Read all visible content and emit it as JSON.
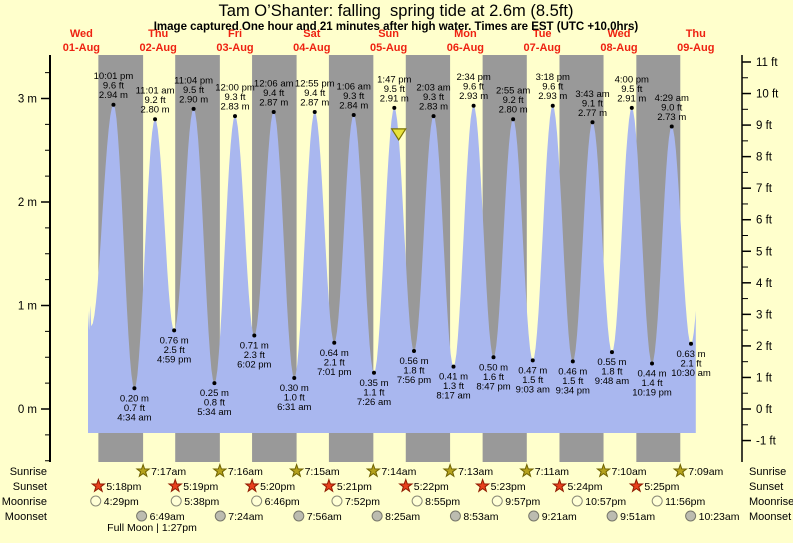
{
  "title": "Tam O’Shanter: falling  spring tide at 2.6m (8.5ft)",
  "subtitle": "Image captured One hour and 21 minutes after high water. Times are EST (UTC +10.0hrs)",
  "colors": {
    "background": "#ffffcc",
    "night_band": "#999999",
    "day_band": "#ffffcc",
    "tide_fill": "#a9b7ef",
    "date_text": "#ee2211",
    "text": "#000000",
    "sunrise_star": "#b5a21c",
    "sunrise_star_edge": "#6e6200",
    "sunset_star": "#e8401c",
    "sunset_star_edge": "#8f1a00",
    "moonrise_fill": "#ffffd6",
    "moonrise_edge": "#8a8a77",
    "moonset_fill": "#bcbcb0",
    "moonset_edge": "#77776a",
    "marker_fill": "#e8e23c",
    "marker_edge": "#7a7200"
  },
  "chart_data": {
    "type": "area",
    "title": "Tam O’Shanter: falling  spring tide at 2.6m (8.5ft)",
    "x_unit": "days since Wed 01-Aug 00:00 (t)",
    "ylim_m": [
      -0.5,
      3.4
    ],
    "grid": false,
    "days": [
      {
        "name": "Wed",
        "date": "01-Aug"
      },
      {
        "name": "Thu",
        "date": "02-Aug"
      },
      {
        "name": "Fri",
        "date": "03-Aug"
      },
      {
        "name": "Sat",
        "date": "04-Aug"
      },
      {
        "name": "Sun",
        "date": "05-Aug"
      },
      {
        "name": "Mon",
        "date": "06-Aug"
      },
      {
        "name": "Tue",
        "date": "07-Aug"
      },
      {
        "name": "Wed",
        "date": "08-Aug"
      },
      {
        "name": "Thu",
        "date": "09-Aug"
      }
    ],
    "left_axis": {
      "unit": "m",
      "minor_step": 0.25,
      "labels": [
        {
          "v": 0,
          "label": "0 m"
        },
        {
          "v": 1,
          "label": "1 m"
        },
        {
          "v": 2,
          "label": "2 m"
        },
        {
          "v": 3,
          "label": "3 m"
        }
      ]
    },
    "right_axis": {
      "unit": "ft",
      "minor_step": 0.5,
      "labels": [
        {
          "v": -1,
          "label": "-1 ft"
        },
        {
          "v": 0,
          "label": "0 ft"
        },
        {
          "v": 1,
          "label": "1 ft"
        },
        {
          "v": 2,
          "label": "2 ft"
        },
        {
          "v": 3,
          "label": "3 ft"
        },
        {
          "v": 4,
          "label": "4 ft"
        },
        {
          "v": 5,
          "label": "5 ft"
        },
        {
          "v": 6,
          "label": "6 ft"
        },
        {
          "v": 7,
          "label": "7 ft"
        },
        {
          "v": 8,
          "label": "8 ft"
        },
        {
          "v": 9,
          "label": "9 ft"
        },
        {
          "v": 10,
          "label": "10 ft"
        },
        {
          "v": 11,
          "label": "11 ft"
        }
      ]
    },
    "tide_events": [
      {
        "k": "H",
        "t": 0.9174,
        "vm": 2.94,
        "time": "10:01 pm",
        "ft": "9.6 ft",
        "m": "2.94 m"
      },
      {
        "k": "L",
        "t": 1.1903,
        "vm": 0.2,
        "time": "4:34 am",
        "ft": "0.7 ft",
        "m": "0.20 m"
      },
      {
        "k": "H",
        "t": 1.459,
        "vm": 2.8,
        "time": "11:01 am",
        "ft": "9.2 ft",
        "m": "2.80 m"
      },
      {
        "k": "L",
        "t": 1.7076,
        "vm": 0.76,
        "time": "4:59 pm",
        "ft": "2.5 ft",
        "m": "0.76 m"
      },
      {
        "k": "H",
        "t": 1.9611,
        "vm": 2.9,
        "time": "11:04 pm",
        "ft": "9.5 ft",
        "m": "2.90 m"
      },
      {
        "k": "L",
        "t": 2.2319,
        "vm": 0.25,
        "time": "5:34 am",
        "ft": "0.8 ft",
        "m": "0.25 m"
      },
      {
        "k": "H",
        "t": 2.5,
        "vm": 2.83,
        "time": "12:00 pm",
        "ft": "9.3 ft",
        "m": "2.83 m"
      },
      {
        "k": "L",
        "t": 2.7514,
        "vm": 0.71,
        "time": "6:02 pm",
        "ft": "2.3 ft",
        "m": "0.71 m"
      },
      {
        "k": "H",
        "t": 3.0042,
        "vm": 2.87,
        "time": "12:06 am",
        "ft": "9.4 ft",
        "m": "2.87 m"
      },
      {
        "k": "L",
        "t": 3.2715,
        "vm": 0.3,
        "time": "6:31 am",
        "ft": "1.0 ft",
        "m": "0.30 m"
      },
      {
        "k": "H",
        "t": 3.5382,
        "vm": 2.87,
        "time": "12:55 pm",
        "ft": "9.4 ft",
        "m": "2.87 m"
      },
      {
        "k": "L",
        "t": 3.7924,
        "vm": 0.64,
        "time": "7:01 pm",
        "ft": "2.1 ft",
        "m": "0.64 m"
      },
      {
        "k": "H",
        "t": 4.0458,
        "vm": 2.84,
        "time": "1:06 am",
        "ft": "9.3 ft",
        "m": "2.84 m"
      },
      {
        "k": "L",
        "t": 4.3097,
        "vm": 0.35,
        "time": "7:26 am",
        "ft": "1.1 ft",
        "m": "0.35 m"
      },
      {
        "k": "H",
        "t": 4.5743,
        "vm": 2.91,
        "time": "1:47 pm",
        "ft": "9.5 ft",
        "m": "2.91 m"
      },
      {
        "k": "L",
        "t": 4.8306,
        "vm": 0.56,
        "time": "7:56 pm",
        "ft": "1.8 ft",
        "m": "0.56 m"
      },
      {
        "k": "H",
        "t": 5.0854,
        "vm": 2.83,
        "time": "2:03 am",
        "ft": "9.3 ft",
        "m": "2.83 m"
      },
      {
        "k": "L",
        "t": 5.3451,
        "vm": 0.41,
        "time": "8:17 am",
        "ft": "1.3 ft",
        "m": "0.41 m"
      },
      {
        "k": "H",
        "t": 5.6069,
        "vm": 2.93,
        "time": "2:34 pm",
        "ft": "9.6 ft",
        "m": "2.93 m"
      },
      {
        "k": "L",
        "t": 5.866,
        "vm": 0.5,
        "time": "8:47 pm",
        "ft": "1.6 ft",
        "m": "0.50 m"
      },
      {
        "k": "H",
        "t": 6.1215,
        "vm": 2.8,
        "time": "2:55 am",
        "ft": "9.2 ft",
        "m": "2.80 m"
      },
      {
        "k": "L",
        "t": 6.3771,
        "vm": 0.47,
        "time": "9:03 am",
        "ft": "1.5 ft",
        "m": "0.47 m"
      },
      {
        "k": "H",
        "t": 6.6375,
        "vm": 2.93,
        "time": "3:18 pm",
        "ft": "9.6 ft",
        "m": "2.93 m"
      },
      {
        "k": "L",
        "t": 6.8986,
        "vm": 0.46,
        "time": "9:34 pm",
        "ft": "1.5 ft",
        "m": "0.46 m"
      },
      {
        "k": "H",
        "t": 7.1549,
        "vm": 2.77,
        "time": "3:43 am",
        "ft": "9.1 ft",
        "m": "2.77 m"
      },
      {
        "k": "L",
        "t": 7.4083,
        "vm": 0.55,
        "time": "9:48 am",
        "ft": "1.8 ft",
        "m": "0.55 m"
      },
      {
        "k": "H",
        "t": 7.6667,
        "vm": 2.91,
        "time": "4:00 pm",
        "ft": "9.5 ft",
        "m": "2.91 m"
      },
      {
        "k": "L",
        "t": 7.9299,
        "vm": 0.44,
        "time": "10:19 pm",
        "ft": "1.4 ft",
        "m": "0.44 m"
      },
      {
        "k": "H",
        "t": 8.1868,
        "vm": 2.73,
        "time": "4:29 am",
        "ft": "9.0 ft",
        "m": "2.73 m"
      },
      {
        "k": "L",
        "t": 8.4375,
        "vm": 0.63,
        "time": "10:30 am",
        "ft": "2.1 ft",
        "m": "0.63 m"
      }
    ],
    "curve_lead_in": [
      {
        "t": 0.586,
        "m": 0.95
      },
      {
        "t": 0.6,
        "m": 0.76
      },
      {
        "t": 0.614,
        "m": 1.0
      },
      {
        "t": 0.628,
        "m": 0.8
      }
    ],
    "curve_tail": {
      "t": 8.69,
      "m": 2.85,
      "cut_t": 8.5
    },
    "current_marker": {
      "t": 4.631,
      "level_m": 2.6
    }
  },
  "sun_moon": {
    "rows": [
      {
        "label": "Sunrise",
        "marker": "sunrise-star",
        "events": [
          {
            "t": 1.3035,
            "time": "7:17am"
          },
          {
            "t": 2.3028,
            "time": "7:16am"
          },
          {
            "t": 3.3021,
            "time": "7:15am"
          },
          {
            "t": 4.3014,
            "time": "7:14am"
          },
          {
            "t": 5.3007,
            "time": "7:13am"
          },
          {
            "t": 6.2993,
            "time": "7:11am"
          },
          {
            "t": 7.2986,
            "time": "7:10am"
          },
          {
            "t": 8.2979,
            "time": "7:09am"
          }
        ]
      },
      {
        "label": "Sunset",
        "marker": "sunset-star",
        "events": [
          {
            "t": 0.7208,
            "time": "5:18pm"
          },
          {
            "t": 1.7215,
            "time": "5:19pm"
          },
          {
            "t": 2.7222,
            "time": "5:20pm"
          },
          {
            "t": 3.7229,
            "time": "5:21pm"
          },
          {
            "t": 4.7236,
            "time": "5:22pm"
          },
          {
            "t": 5.7243,
            "time": "5:23pm"
          },
          {
            "t": 6.725,
            "time": "5:24pm"
          },
          {
            "t": 7.7257,
            "time": "5:25pm"
          }
        ]
      },
      {
        "label": "Moonrise",
        "marker": "moonrise-circle",
        "events": [
          {
            "t": 0.6868,
            "time": "4:29pm"
          },
          {
            "t": 1.7347,
            "time": "5:38pm"
          },
          {
            "t": 2.7819,
            "time": "6:46pm"
          },
          {
            "t": 3.8278,
            "time": "7:52pm"
          },
          {
            "t": 4.8715,
            "time": "8:55pm"
          },
          {
            "t": 5.9146,
            "time": "9:57pm"
          },
          {
            "t": 6.9563,
            "time": "10:57pm"
          },
          {
            "t": 7.9972,
            "time": "11:56pm"
          }
        ]
      },
      {
        "label": "Moonset",
        "marker": "moonset-circle",
        "events": [
          {
            "t": 1.284,
            "time": "6:49am"
          },
          {
            "t": 2.3083,
            "time": "7:24am"
          },
          {
            "t": 3.3306,
            "time": "7:56am"
          },
          {
            "t": 4.3507,
            "time": "8:25am"
          },
          {
            "t": 5.3701,
            "time": "8:53am"
          },
          {
            "t": 6.3896,
            "time": "9:21am"
          },
          {
            "t": 7.4104,
            "time": "9:51am"
          },
          {
            "t": 8.4326,
            "time": "10:23am"
          }
        ]
      }
    ],
    "full_moon_text": "Full Moon | 1:27pm"
  }
}
